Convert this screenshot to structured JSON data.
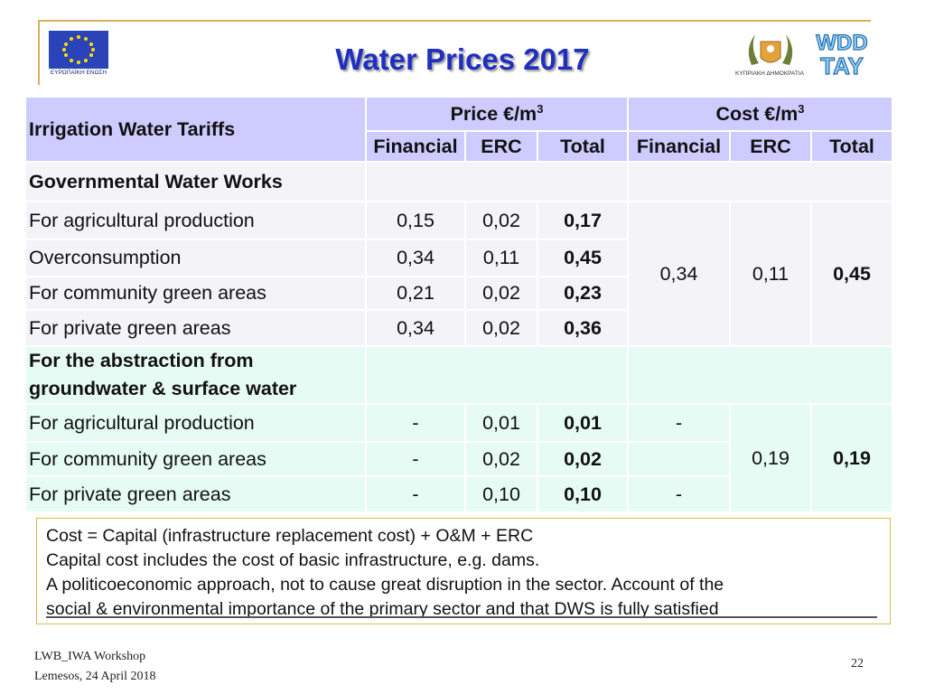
{
  "title": "Water Prices 2017",
  "logos": {
    "eu_caption": "ΕΥΡΩΠΑΪΚΗ ΕΝΩΣΗ",
    "cyprus_caption": "ΚΥΠΡΙΑΚΗ ΔΗΜΟΚΡΑΤΙΑ",
    "wdd_top": "WDD",
    "wdd_bottom": "TAY"
  },
  "table": {
    "header_label": "Irrigation Water Tariffs",
    "price_group": "Price €/m",
    "cost_group": "Cost €/m",
    "superscript": "3",
    "col_financial": "Financial",
    "col_erc": "ERC",
    "col_total": "Total",
    "section1_title": "Governmental Water Works",
    "section1_rows": [
      {
        "label": "For agricultural production",
        "financial": "0,15",
        "erc": "0,02",
        "total": "0,17"
      },
      {
        "label": "Overconsumption",
        "financial": "0,34",
        "erc": "0,11",
        "total": "0,45"
      },
      {
        "label": "For community green areas",
        "financial": "0,21",
        "erc": "0,02",
        "total": "0,23"
      },
      {
        "label": "For private green areas",
        "financial": "0,34",
        "erc": "0,02",
        "total": "0,36"
      }
    ],
    "section1_cost": {
      "financial": "0,34",
      "erc": "0,11",
      "total": "0,45"
    },
    "section2_title_line1": "For the abstraction from",
    "section2_title_line2": "groundwater & surface water",
    "section2_rows": [
      {
        "label": "For agricultural production",
        "financial": "-",
        "erc": "0,01",
        "total": "0,01",
        "cost_financial": "-"
      },
      {
        "label": "For community green areas",
        "financial": "-",
        "erc": "0,02",
        "total": "0,02",
        "cost_financial": ""
      },
      {
        "label": "For private green areas",
        "financial": "-",
        "erc": "0,10",
        "total": "0,10",
        "cost_financial": "-"
      }
    ],
    "section2_cost": {
      "erc": "0,19",
      "total": "0,19"
    }
  },
  "note": {
    "line1": "Cost = Capital (infrastructure replacement cost) + O&M + ERC",
    "line2": "Capital cost includes the cost of basic infrastructure, e.g. dams.",
    "line3": "A politicoeconomic approach, not to cause great disruption in the sector. Account of the",
    "line4": "social & environmental importance of the primary sector and that DWS is fully satisfied"
  },
  "footer": {
    "line1": "LWB_IWA Workshop",
    "line2": "Lemesos, 24 April 2018",
    "page_number": "22"
  },
  "colors": {
    "title": "#1f2fc0",
    "header_bg": "#cdcbff",
    "section1_bg": "#f4f4f8",
    "section2_bg": "#e6fbf4",
    "note_border": "#e0b84a"
  }
}
